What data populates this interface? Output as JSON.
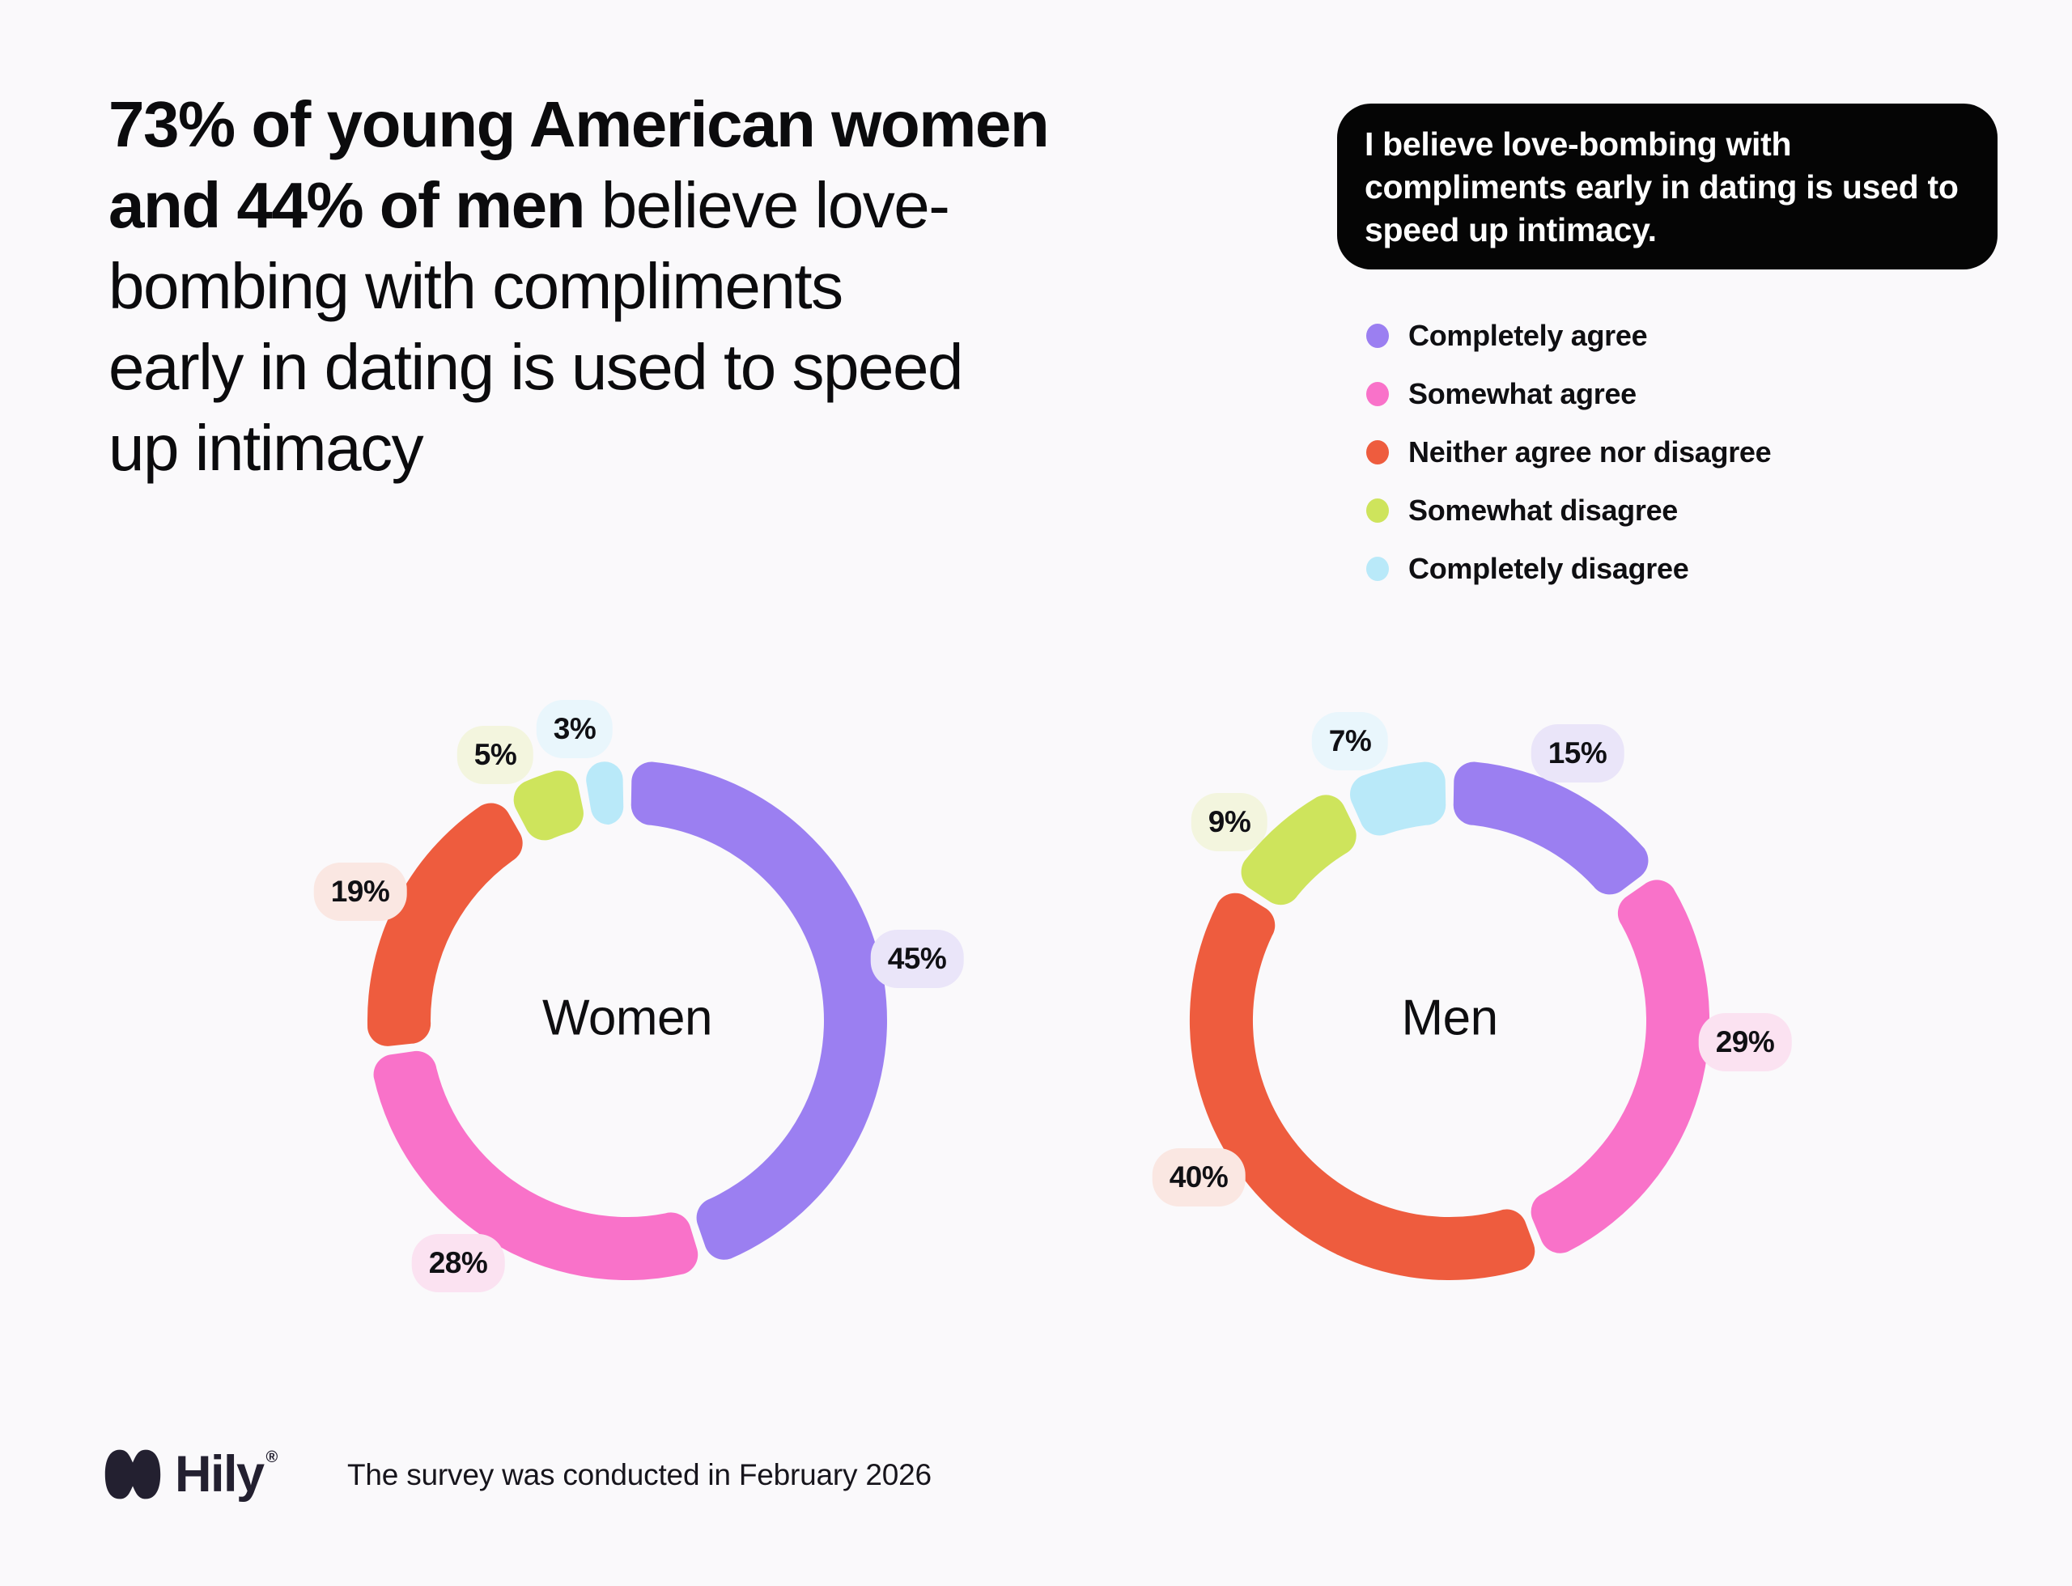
{
  "page": {
    "background": "#FAF9FB"
  },
  "title": {
    "lines": [
      {
        "bold": "73% of young American women",
        "regular": ""
      },
      {
        "bold": "and 44% of men",
        "regular": " believe love-"
      },
      {
        "bold": "",
        "regular": "bombing with compliments"
      },
      {
        "bold": "",
        "regular": "early in dating is used to speed"
      },
      {
        "bold": "",
        "regular": "up intimacy"
      }
    ]
  },
  "statement_card": {
    "background": "#050505",
    "text_color": "#FFFFFF",
    "lines": [
      "I believe love-bombing with",
      "compliments early in dating is used to",
      "speed up intimacy."
    ]
  },
  "chart_data": {
    "type": "pie",
    "subtype": "donut",
    "legend_position": "top-right",
    "categories": [
      "Completely agree",
      "Somewhat agree",
      "Neither agree nor disagree",
      "Somewhat disagree",
      "Completely disagree"
    ],
    "slice_colors": [
      "#9B7FF1",
      "#F972C9",
      "#EE5C3E",
      "#CEE45C",
      "#B9E9F9"
    ],
    "pill_colors": [
      "#EAE5F9",
      "#FBE2F1",
      "#FAE7E2",
      "#F3F5DE",
      "#E9F6FC"
    ],
    "series": [
      {
        "name": "Women",
        "values": [
          45,
          28,
          19,
          5,
          3
        ],
        "value_labels": [
          "45%",
          "28%",
          "19%",
          "5%",
          "3%"
        ]
      },
      {
        "name": "Men",
        "values": [
          15,
          29,
          40,
          9,
          7
        ],
        "value_labels": [
          "15%",
          "29%",
          "40%",
          "9%",
          "7%"
        ]
      }
    ]
  },
  "footer": {
    "brand": "Hily",
    "registered": "®",
    "brand_color": "#232030",
    "note": "The survey was conducted in February 2026"
  }
}
